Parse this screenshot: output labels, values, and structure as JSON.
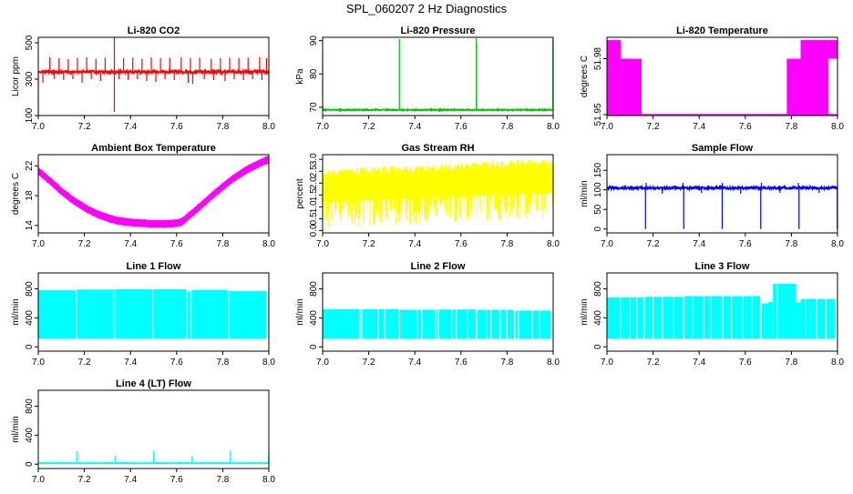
{
  "figure": {
    "title": "SPL_060207  2 Hz Diagnostics"
  },
  "chart_data": [
    {
      "id": "co2",
      "type": "line",
      "title": "Li-820 CO2",
      "ylabel": "Licor ppm",
      "color": "#ff0000",
      "xlim": [
        7.0,
        8.0
      ],
      "ylim": [
        100,
        530
      ],
      "xticks": [
        7.0,
        7.2,
        7.4,
        7.6,
        7.8,
        8.0
      ],
      "xtick_labels": [
        "7.0",
        "7.2",
        "7.4",
        "7.6",
        "7.8",
        "8.0"
      ],
      "yticks": [
        100,
        300,
        500
      ],
      "ytick_labels": [
        "100",
        "300",
        "500"
      ],
      "pattern": "baseline_spikes",
      "baseline": 340,
      "noise": 8,
      "spikes_up": [
        [
          7.05,
          420
        ],
        [
          7.09,
          415
        ],
        [
          7.13,
          410
        ],
        [
          7.17,
          418
        ],
        [
          7.21,
          420
        ],
        [
          7.25,
          412
        ],
        [
          7.29,
          418
        ],
        [
          7.33,
          530
        ],
        [
          7.37,
          415
        ],
        [
          7.41,
          418
        ],
        [
          7.45,
          412
        ],
        [
          7.49,
          420
        ],
        [
          7.53,
          415
        ],
        [
          7.57,
          418
        ],
        [
          7.62,
          420
        ],
        [
          7.66,
          416
        ],
        [
          7.7,
          418
        ],
        [
          7.75,
          412
        ],
        [
          7.79,
          415
        ],
        [
          7.83,
          418
        ],
        [
          7.87,
          416
        ],
        [
          7.91,
          418
        ],
        [
          7.96,
          420
        ],
        [
          7.99,
          415
        ]
      ],
      "spikes_down": [
        [
          7.0,
          100
        ],
        [
          7.02,
          280
        ],
        [
          7.07,
          300
        ],
        [
          7.11,
          295
        ],
        [
          7.15,
          300
        ],
        [
          7.19,
          280
        ],
        [
          7.23,
          300
        ],
        [
          7.27,
          290
        ],
        [
          7.33,
          120
        ],
        [
          7.35,
          300
        ],
        [
          7.39,
          295
        ],
        [
          7.43,
          300
        ],
        [
          7.47,
          290
        ],
        [
          7.51,
          285
        ],
        [
          7.55,
          300
        ],
        [
          7.59,
          295
        ],
        [
          7.65,
          280
        ],
        [
          7.67,
          275
        ],
        [
          7.72,
          300
        ],
        [
          7.76,
          295
        ],
        [
          7.81,
          290
        ],
        [
          7.85,
          300
        ],
        [
          7.89,
          295
        ],
        [
          7.93,
          300
        ],
        [
          7.97,
          295
        ],
        [
          8.0,
          280
        ]
      ]
    },
    {
      "id": "pressure",
      "type": "line",
      "title": "Li-820 Pressure",
      "ylabel": "kPa",
      "color": "#00c000",
      "xlim": [
        7.0,
        8.0
      ],
      "ylim": [
        67.5,
        91
      ],
      "xticks": [
        7.0,
        7.2,
        7.4,
        7.6,
        7.8,
        8.0
      ],
      "xtick_labels": [
        "7.0",
        "7.2",
        "7.4",
        "7.6",
        "7.8",
        "8.0"
      ],
      "yticks": [
        70,
        80,
        90
      ],
      "ytick_labels": [
        "70",
        "80",
        "90"
      ],
      "pattern": "baseline_spikes",
      "baseline": 69.2,
      "noise": 0.15,
      "spikes_up": [
        [
          7.0,
          86.5
        ],
        [
          7.333,
          90.5
        ],
        [
          7.667,
          90.8
        ],
        [
          7.668,
          89.5
        ],
        [
          7.999,
          90.5
        ]
      ],
      "spikes_down": []
    },
    {
      "id": "temperature",
      "type": "line",
      "title": "Li-820 Temperature",
      "ylabel": "degrees C",
      "color": "#ff00ff",
      "xlim": [
        7.0,
        8.0
      ],
      "ylim": [
        51.9495,
        51.9915
      ],
      "xticks": [
        7.0,
        7.2,
        7.4,
        7.6,
        7.8,
        8.0
      ],
      "xtick_labels": [
        "7.0",
        "7.2",
        "7.4",
        "7.6",
        "7.8",
        "8.0"
      ],
      "yticks": [
        51.95,
        51.98
      ],
      "ytick_labels": [
        "51.95",
        "51.98"
      ],
      "pattern": "temperature_bands",
      "bands": [
        [
          7.0,
          7.06,
          51.95,
          51.99
        ],
        [
          7.06,
          7.15,
          51.95,
          51.98
        ],
        [
          7.78,
          7.84,
          51.95,
          51.98
        ],
        [
          7.84,
          7.96,
          51.95,
          51.99
        ],
        [
          7.96,
          8.0,
          51.98,
          51.99
        ]
      ],
      "low_level": 51.95
    },
    {
      "id": "ambient",
      "type": "line",
      "title": "Ambient Box Temperature",
      "ylabel": "degrees C",
      "color": "#ff00ff",
      "xlim": [
        7.0,
        8.0
      ],
      "ylim": [
        13,
        23.5
      ],
      "xticks": [
        7.0,
        7.2,
        7.4,
        7.6,
        7.8,
        8.0
      ],
      "xtick_labels": [
        "7.0",
        "7.2",
        "7.4",
        "7.6",
        "7.8",
        "8.0"
      ],
      "yticks": [
        14,
        18,
        22
      ],
      "ytick_labels": [
        "14",
        "18",
        "22"
      ],
      "pattern": "band_curve",
      "half_width": 0.6,
      "curve_x": [
        7.0,
        7.05,
        7.1,
        7.15,
        7.2,
        7.25,
        7.3,
        7.35,
        7.4,
        7.45,
        7.5,
        7.55,
        7.6,
        7.625,
        7.65,
        7.7,
        7.75,
        7.8,
        7.85,
        7.9,
        7.95,
        8.0
      ],
      "curve_y": [
        21.3,
        20.0,
        18.6,
        17.4,
        16.4,
        15.6,
        15.0,
        14.6,
        14.4,
        14.3,
        14.2,
        14.2,
        14.3,
        14.5,
        15.2,
        16.5,
        17.9,
        19.2,
        20.4,
        21.4,
        22.2,
        22.9
      ]
    },
    {
      "id": "rh",
      "type": "line",
      "title": "Gas Stream RH",
      "ylabel": "percent",
      "color": "#ffff00",
      "xlim": [
        7.0,
        8.0
      ],
      "ylim": [
        -0.1,
        3.2
      ],
      "xticks": [
        7.0,
        7.2,
        7.4,
        7.6,
        7.8,
        8.0
      ],
      "xtick_labels": [
        "7.0",
        "7.2",
        "7.4",
        "7.6",
        "7.8",
        "8.0"
      ],
      "yticks": [
        0.0,
        0.5,
        1.0,
        1.5,
        2.0,
        2.5,
        3.0
      ],
      "ytick_labels": [
        "0.0",
        "0.5",
        "1.0",
        "1.5",
        "2.0",
        "2.5",
        "3.0"
      ],
      "pattern": "rh_noise",
      "top_x": [
        7.0,
        7.25,
        7.5,
        7.75,
        8.0
      ],
      "top_y": [
        2.6,
        2.7,
        2.8,
        2.95,
        3.05
      ],
      "bottom_x": [
        7.0,
        7.5,
        8.0
      ],
      "bottom_y": [
        0.1,
        0.3,
        0.5
      ]
    },
    {
      "id": "sample_flow",
      "type": "line",
      "title": "Sample Flow",
      "ylabel": "ml/min",
      "color": "#0000ff",
      "xlim": [
        7.0,
        8.0
      ],
      "ylim": [
        -10,
        190
      ],
      "xticks": [
        7.0,
        7.2,
        7.4,
        7.6,
        7.8,
        8.0
      ],
      "xtick_labels": [
        "7.0",
        "7.2",
        "7.4",
        "7.6",
        "7.8",
        "8.0"
      ],
      "yticks": [
        0,
        50,
        100,
        150
      ],
      "ytick_labels": [
        "0",
        "50",
        "100",
        "150"
      ],
      "pattern": "baseline_spikes",
      "baseline": 105,
      "noise": 3,
      "spikes_up": [
        [
          7.0,
          125
        ],
        [
          7.17,
          118
        ],
        [
          7.33,
          118
        ],
        [
          7.5,
          118
        ],
        [
          7.67,
          118
        ],
        [
          7.83,
          118
        ]
      ],
      "spikes_down": [
        [
          7.167,
          0
        ],
        [
          7.333,
          0
        ],
        [
          7.5,
          0
        ],
        [
          7.667,
          0
        ],
        [
          7.833,
          0
        ],
        [
          7.999,
          0
        ],
        [
          7.24,
          90
        ],
        [
          7.41,
          92
        ],
        [
          7.58,
          90
        ],
        [
          7.75,
          92
        ],
        [
          7.92,
          92
        ]
      ]
    },
    {
      "id": "line1",
      "type": "line",
      "title": "Line 1 Flow",
      "ylabel": "ml/min",
      "color": "#00ffff",
      "xlim": [
        7.0,
        8.0
      ],
      "ylim": [
        -60,
        1020
      ],
      "xticks": [
        7.0,
        7.2,
        7.4,
        7.6,
        7.8,
        8.0
      ],
      "xtick_labels": [
        "7.0",
        "7.2",
        "7.4",
        "7.6",
        "7.8",
        "8.0"
      ],
      "yticks": [
        0,
        400,
        800
      ],
      "ytick_labels": [
        "0",
        "400",
        "800"
      ],
      "pattern": "flow_blocks",
      "blocks": [
        [
          7.0,
          7.163,
          110,
          780
        ],
        [
          7.168,
          7.328,
          110,
          790
        ],
        [
          7.333,
          7.495,
          110,
          795
        ],
        [
          7.5,
          7.643,
          110,
          795
        ],
        [
          7.648,
          7.66,
          110,
          760
        ],
        [
          7.665,
          7.825,
          110,
          785
        ],
        [
          7.83,
          7.99,
          110,
          770
        ]
      ],
      "gaps": [
        7.165,
        7.33,
        7.497,
        7.645,
        7.662,
        7.827
      ]
    },
    {
      "id": "line2",
      "type": "line",
      "title": "Line 2 Flow",
      "ylabel": "ml/min",
      "color": "#00ffff",
      "xlim": [
        7.0,
        8.0
      ],
      "ylim": [
        -60,
        1020
      ],
      "xticks": [
        7.0,
        7.2,
        7.4,
        7.6,
        7.8,
        8.0
      ],
      "xtick_labels": [
        "7.0",
        "7.2",
        "7.4",
        "7.6",
        "7.8",
        "8.0"
      ],
      "yticks": [
        0,
        400,
        800
      ],
      "ytick_labels": [
        "0",
        "400",
        "800"
      ],
      "pattern": "flow_blocks",
      "blocks": [
        [
          7.0,
          7.16,
          110,
          520
        ],
        [
          7.165,
          7.33,
          110,
          520
        ],
        [
          7.335,
          7.5,
          110,
          510
        ],
        [
          7.505,
          7.665,
          110,
          515
        ],
        [
          7.67,
          7.83,
          110,
          510
        ],
        [
          7.835,
          7.99,
          110,
          500
        ]
      ],
      "gaps": [
        7.163,
        7.333,
        7.503,
        7.667,
        7.833,
        7.17,
        7.24,
        7.27,
        7.41,
        7.43,
        7.49,
        7.56,
        7.58,
        7.63,
        7.71,
        7.73,
        7.77,
        7.8,
        7.85,
        7.91,
        7.94
      ]
    },
    {
      "id": "line3",
      "type": "line",
      "title": "Line 3 Flow",
      "ylabel": "ml/min",
      "color": "#00ffff",
      "xlim": [
        7.0,
        8.0
      ],
      "ylim": [
        -60,
        1020
      ],
      "xticks": [
        7.0,
        7.2,
        7.4,
        7.6,
        7.8,
        8.0
      ],
      "xtick_labels": [
        "7.0",
        "7.2",
        "7.4",
        "7.6",
        "7.8",
        "8.0"
      ],
      "yticks": [
        0,
        400,
        800
      ],
      "ytick_labels": [
        "0",
        "400",
        "800"
      ],
      "pattern": "flow_blocks",
      "blocks": [
        [
          7.0,
          7.16,
          110,
          680
        ],
        [
          7.165,
          7.33,
          110,
          690
        ],
        [
          7.335,
          7.5,
          110,
          700
        ],
        [
          7.505,
          7.665,
          110,
          700
        ],
        [
          7.67,
          7.7,
          110,
          600
        ],
        [
          7.7,
          7.72,
          110,
          620
        ],
        [
          7.72,
          7.82,
          110,
          870
        ],
        [
          7.82,
          7.84,
          110,
          610
        ],
        [
          7.84,
          7.99,
          110,
          660
        ]
      ],
      "gaps": [
        7.163,
        7.333,
        7.503,
        7.667,
        7.06,
        7.1,
        7.13,
        7.2,
        7.24,
        7.29,
        7.37,
        7.42,
        7.45,
        7.54,
        7.59,
        7.63,
        7.74,
        7.86,
        7.91,
        7.95
      ]
    },
    {
      "id": "line4",
      "type": "line",
      "title": "Line 4 (LT) Flow",
      "ylabel": "ml/min",
      "color": "#00ffff",
      "xlim": [
        7.0,
        8.0
      ],
      "ylim": [
        -60,
        1020
      ],
      "xticks": [
        7.0,
        7.2,
        7.4,
        7.6,
        7.8,
        8.0
      ],
      "xtick_labels": [
        "7.0",
        "7.2",
        "7.4",
        "7.6",
        "7.8",
        "8.0"
      ],
      "yticks": [
        0,
        400,
        800
      ],
      "ytick_labels": [
        "0",
        "400",
        "800"
      ],
      "pattern": "baseline_spikes",
      "baseline": 15,
      "noise": 4,
      "spikes_up": [
        [
          7.167,
          180
        ],
        [
          7.333,
          120
        ],
        [
          7.5,
          185
        ],
        [
          7.667,
          110
        ],
        [
          7.833,
          185
        ],
        [
          7.999,
          130
        ]
      ],
      "spikes_down": []
    }
  ]
}
